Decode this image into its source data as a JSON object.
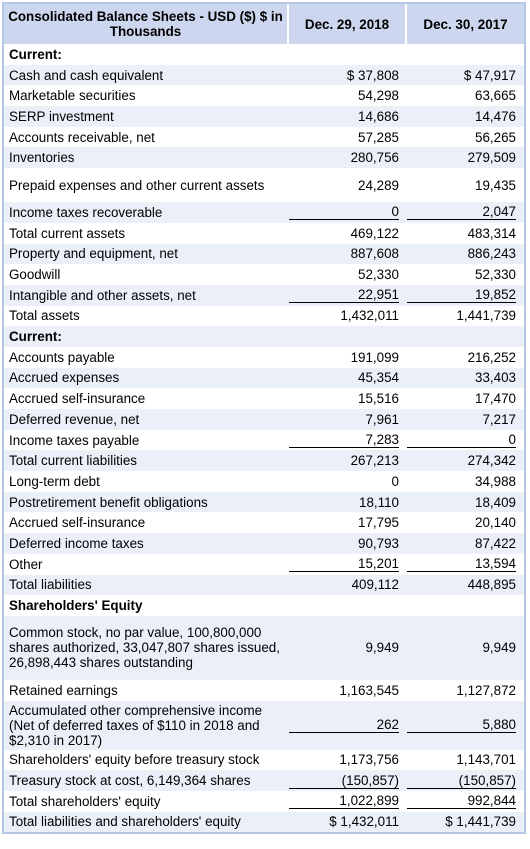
{
  "header": {
    "title": "Consolidated Balance Sheets - USD ($) $ in Thousands",
    "col1": "Dec. 29, 2018",
    "col2": "Dec. 30, 2017"
  },
  "rows": [
    {
      "label": "Current:",
      "v1": "",
      "v2": "",
      "bold": true
    },
    {
      "label": "Cash and cash equivalent",
      "v1": "$ 37,808",
      "v2": "$ 47,917"
    },
    {
      "label": "Marketable securities",
      "v1": "54,298",
      "v2": "63,665"
    },
    {
      "label": "SERP investment",
      "v1": "14,686",
      "v2": "14,476"
    },
    {
      "label": "Accounts receivable, net",
      "v1": "57,285",
      "v2": "56,265"
    },
    {
      "label": "Inventories",
      "v1": "280,756",
      "v2": "279,509"
    },
    {
      "label": "Prepaid expenses and other current assets",
      "v1": "24,289",
      "v2": "19,435",
      "lines": 2
    },
    {
      "label": "Income taxes recoverable",
      "v1": "0",
      "v2": "2,047",
      "ul": true
    },
    {
      "label": "Total current assets",
      "v1": "469,122",
      "v2": "483,314"
    },
    {
      "label": "Property and equipment, net",
      "v1": "887,608",
      "v2": "886,243"
    },
    {
      "label": "Goodwill",
      "v1": "52,330",
      "v2": "52,330"
    },
    {
      "label": "Intangible and other assets, net",
      "v1": "22,951",
      "v2": "19,852",
      "ul": true
    },
    {
      "label": "Total assets",
      "v1": "1,432,011",
      "v2": "1,441,739"
    },
    {
      "label": "Current:",
      "v1": "",
      "v2": "",
      "bold": true
    },
    {
      "label": "Accounts payable",
      "v1": "191,099",
      "v2": "216,252"
    },
    {
      "label": "Accrued expenses",
      "v1": "45,354",
      "v2": "33,403"
    },
    {
      "label": "Accrued self-insurance",
      "v1": "15,516",
      "v2": "17,470"
    },
    {
      "label": "Deferred revenue, net",
      "v1": "7,961",
      "v2": "7,217"
    },
    {
      "label": "Income taxes payable",
      "v1": "7,283",
      "v2": "0",
      "ul": true
    },
    {
      "label": "Total current liabilities",
      "v1": "267,213",
      "v2": "274,342"
    },
    {
      "label": "Long-term debt",
      "v1": "0",
      "v2": "34,988"
    },
    {
      "label": "Postretirement benefit obligations",
      "v1": "18,110",
      "v2": "18,409"
    },
    {
      "label": "Accrued self-insurance",
      "v1": "17,795",
      "v2": "20,140"
    },
    {
      "label": "Deferred income taxes",
      "v1": "90,793",
      "v2": "87,422"
    },
    {
      "label": "Other",
      "v1": "15,201",
      "v2": "13,594",
      "ul": true
    },
    {
      "label": "Total liabilities",
      "v1": "409,112",
      "v2": "448,895"
    },
    {
      "label": "Shareholders' Equity",
      "v1": "",
      "v2": "",
      "bold": true
    },
    {
      "label": "Common stock, no par value, 100,800,000 shares authorized, 33,047,807 shares issued, 26,898,443 shares outstanding",
      "v1": "9,949",
      "v2": "9,949",
      "lines": 4
    },
    {
      "label": "Retained earnings",
      "v1": "1,163,545",
      "v2": "1,127,872"
    },
    {
      "label": "Accumulated other comprehensive income (Net of deferred taxes of $110 in 2018 and $2,310 in 2017)",
      "v1": "262",
      "v2": "5,880",
      "lines": 3,
      "ul": true
    },
    {
      "label": "Shareholders' equity before treasury stock",
      "v1": "1,173,756",
      "v2": "1,143,701"
    },
    {
      "label": "Treasury stock at cost, 6,149,364 shares",
      "v1": "(150,857)",
      "v2": "(150,857)",
      "ul": true
    },
    {
      "label": "Total shareholders' equity",
      "v1": "1,022,899",
      "v2": "992,844",
      "ul": true
    },
    {
      "label": "Total liabilities and shareholders' equity",
      "v1": "$ 1,432,011",
      "v2": "$ 1,441,739"
    }
  ]
}
